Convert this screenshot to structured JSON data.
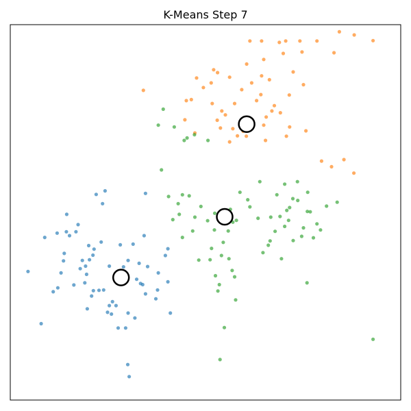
{
  "chart_data": {
    "type": "scatter",
    "title": "K-Means Step 7",
    "xlabel": "",
    "ylabel": "",
    "xlim": [
      -3.2,
      7.8
    ],
    "ylim": [
      -3.05,
      7.52
    ],
    "grid": false,
    "legend": "none",
    "ticks": "hidden",
    "series": [
      {
        "color": "#1f77b4",
        "points": [
          [
            -2.7,
            0.57
          ],
          [
            -2.33,
            -0.9
          ],
          [
            -2.23,
            1.53
          ],
          [
            -1.99,
            0.0
          ],
          [
            -1.88,
            1.65
          ],
          [
            -1.86,
            0.11
          ],
          [
            -1.77,
            0.53
          ],
          [
            -1.7,
            0.87
          ],
          [
            -1.68,
            1.08
          ],
          [
            -1.62,
            1.69
          ],
          [
            -1.61,
            2.18
          ],
          [
            -1.53,
            1.58
          ],
          [
            -1.41,
            0.19
          ],
          [
            -1.35,
            1.69
          ],
          [
            -1.29,
            1.89
          ],
          [
            -1.23,
            0.65
          ],
          [
            -1.17,
            0.88
          ],
          [
            -1.1,
            0.25
          ],
          [
            -1.08,
            0.72
          ],
          [
            -1.05,
            0.49
          ],
          [
            -1.03,
            -0.48
          ],
          [
            -0.99,
            1.3
          ],
          [
            -0.97,
            0.9
          ],
          [
            -0.91,
            -0.12
          ],
          [
            -0.87,
            1.03
          ],
          [
            -0.86,
            0.03
          ],
          [
            -0.84,
            1.2
          ],
          [
            -0.78,
            2.74
          ],
          [
            -0.7,
            0.04
          ],
          [
            -0.64,
            1.4
          ],
          [
            -0.6,
            2.48
          ],
          [
            -0.57,
            0.05
          ],
          [
            -0.53,
            2.84
          ],
          [
            -0.46,
            -0.58
          ],
          [
            -0.41,
            -0.39
          ],
          [
            -0.41,
            0.72
          ],
          [
            -0.35,
            -0.63
          ],
          [
            -0.32,
            -0.28
          ],
          [
            -0.22,
            -0.39
          ],
          [
            -0.1,
            1.32
          ],
          [
            -0.04,
            0.49
          ],
          [
            -0.01,
            0.7
          ],
          [
            0.12,
            -0.6
          ],
          [
            0.12,
            0.88
          ],
          [
            0.26,
            1.34
          ],
          [
            0.31,
            -0.74
          ],
          [
            0.36,
            0.35
          ],
          [
            0.43,
            0.8
          ],
          [
            0.47,
            0.23
          ],
          [
            0.53,
            0.2
          ],
          [
            0.57,
            1.58
          ],
          [
            0.61,
            2.77
          ],
          [
            0.61,
            -0.06
          ],
          [
            0.67,
            0.71
          ],
          [
            0.9,
            -0.2
          ],
          [
            0.95,
            0.05
          ],
          [
            0.97,
            0.53
          ],
          [
            1.17,
            1.02
          ],
          [
            1.24,
            0.28
          ],
          [
            1.24,
            1.21
          ],
          [
            1.31,
            -0.6
          ],
          [
            0.11,
            -2.05
          ],
          [
            0.15,
            -2.39
          ],
          [
            -0.16,
            -1.02
          ],
          [
            0.05,
            -1.02
          ]
        ]
      },
      {
        "color": "#ff7f0e",
        "points": [
          [
            0.55,
            5.67
          ],
          [
            2.46,
            5.88
          ],
          [
            2.05,
            6.02
          ],
          [
            1.9,
            5.41
          ],
          [
            3.12,
            5.3
          ],
          [
            3.6,
            5.88
          ],
          [
            4.38,
            7.02
          ],
          [
            4.77,
            6.19
          ],
          [
            5.02,
            6.75
          ],
          [
            4.41,
            5.04
          ],
          [
            4.1,
            5.97
          ],
          [
            3.74,
            5.38
          ],
          [
            2.86,
            4.98
          ],
          [
            2.72,
            4.61
          ],
          [
            3.36,
            4.52
          ],
          [
            3.86,
            5.55
          ],
          [
            4.17,
            5.09
          ],
          [
            2.76,
            5.09
          ],
          [
            3.2,
            4.39
          ],
          [
            3.53,
            4.82
          ],
          [
            4.58,
            4.38
          ],
          [
            5.06,
            5.83
          ],
          [
            2.98,
            4.22
          ],
          [
            3.88,
            6.08
          ],
          [
            4.24,
            5.24
          ],
          [
            2.0,
            4.47
          ],
          [
            1.72,
            4.84
          ],
          [
            2.49,
            5.3
          ],
          [
            3.32,
            5.69
          ],
          [
            4.01,
            4.92
          ],
          [
            3.61,
            4.64
          ],
          [
            4.49,
            6.71
          ],
          [
            4.67,
            4.64
          ],
          [
            5.13,
            4.53
          ],
          [
            5.57,
            3.68
          ],
          [
            5.85,
            3.52
          ],
          [
            6.2,
            3.72
          ],
          [
            7.02,
            7.07
          ],
          [
            6.49,
            7.23
          ],
          [
            6.07,
            7.32
          ],
          [
            5.92,
            6.73
          ],
          [
            5.44,
            7.06
          ],
          [
            4.96,
            7.06
          ],
          [
            4.56,
            7.06
          ],
          [
            3.94,
            6.54
          ],
          [
            3.46,
            6.41
          ],
          [
            3.88,
            7.06
          ],
          [
            3.55,
            7.06
          ],
          [
            2.64,
            6.17
          ],
          [
            2.98,
            6.04
          ],
          [
            1.76,
            5.38
          ],
          [
            3.07,
            4.59
          ],
          [
            3.94,
            4.69
          ],
          [
            4.66,
            5.54
          ],
          [
            3.99,
            4.26
          ],
          [
            6.48,
            3.34
          ],
          [
            3.45,
            4.38
          ],
          [
            2.63,
            4.83
          ],
          [
            2.24,
            5.75
          ],
          [
            2.53,
            6.25
          ]
        ]
      },
      {
        "color": "#2ca02c",
        "points": [
          [
            0.97,
            4.69
          ],
          [
            1.11,
            5.14
          ],
          [
            1.7,
            4.26
          ],
          [
            1.99,
            4.42
          ],
          [
            2.37,
            4.26
          ],
          [
            1.42,
            4.64
          ],
          [
            1.78,
            4.33
          ],
          [
            1.06,
            3.43
          ],
          [
            1.26,
            2.68
          ],
          [
            1.53,
            2.48
          ],
          [
            1.38,
            2.03
          ],
          [
            1.65,
            1.53
          ],
          [
            2.0,
            2.1
          ],
          [
            2.36,
            2.0
          ],
          [
            2.55,
            1.74
          ],
          [
            2.94,
            1.71
          ],
          [
            3.0,
            2.32
          ],
          [
            3.17,
            2.01
          ],
          [
            3.27,
            2.8
          ],
          [
            3.49,
            2.59
          ],
          [
            3.78,
            2.07
          ],
          [
            4.12,
            1.43
          ],
          [
            4.44,
            0.93
          ],
          [
            5.34,
            1.52
          ],
          [
            5.71,
            2.41
          ],
          [
            5.18,
            2.8
          ],
          [
            4.89,
            3.1
          ],
          [
            4.53,
            3.03
          ],
          [
            3.83,
            3.1
          ],
          [
            3.55,
            2.39
          ],
          [
            3.05,
            0.6
          ],
          [
            3.15,
            -0.23
          ],
          [
            2.83,
            -1.01
          ],
          [
            2.69,
            0.2
          ],
          [
            2.43,
            0.9
          ],
          [
            2.11,
            0.89
          ],
          [
            1.94,
            1.71
          ],
          [
            1.65,
            2.73
          ],
          [
            2.17,
            2.4
          ],
          [
            2.56,
            2.21
          ],
          [
            3.07,
            1.96
          ],
          [
            3.12,
            0.42
          ],
          [
            2.96,
            0.93
          ],
          [
            2.8,
            1.39
          ],
          [
            2.58,
            0.45
          ],
          [
            2.47,
            1.22
          ],
          [
            2.75,
            1.02
          ],
          [
            1.84,
            2.7
          ],
          [
            4.31,
            2.73
          ],
          [
            4.67,
            2.37
          ],
          [
            5.06,
            1.8
          ],
          [
            4.9,
            2.57
          ],
          [
            4.26,
            1.7
          ],
          [
            4.77,
            1.44
          ],
          [
            5.01,
            1.56
          ],
          [
            5.54,
            1.74
          ],
          [
            5.25,
            2.25
          ],
          [
            4.59,
            2.29
          ],
          [
            3.92,
            1.1
          ],
          [
            4.14,
            2.1
          ],
          [
            4.4,
            2.12
          ],
          [
            4.53,
            1.84
          ],
          [
            4.76,
            2.62
          ],
          [
            4.07,
            1.31
          ],
          [
            5.16,
            0.25
          ],
          [
            5.17,
            2.26
          ],
          [
            5.44,
            1.91
          ],
          [
            4.64,
            2.01
          ],
          [
            2.65,
            0.02
          ],
          [
            6.01,
            2.52
          ],
          [
            7.02,
            -1.34
          ],
          [
            2.71,
            -1.91
          ],
          [
            1.56,
            2.18
          ]
        ]
      }
    ],
    "centroids": [
      [
        -0.08,
        0.4
      ],
      [
        3.46,
        4.72
      ],
      [
        2.84,
        2.11
      ]
    ]
  }
}
